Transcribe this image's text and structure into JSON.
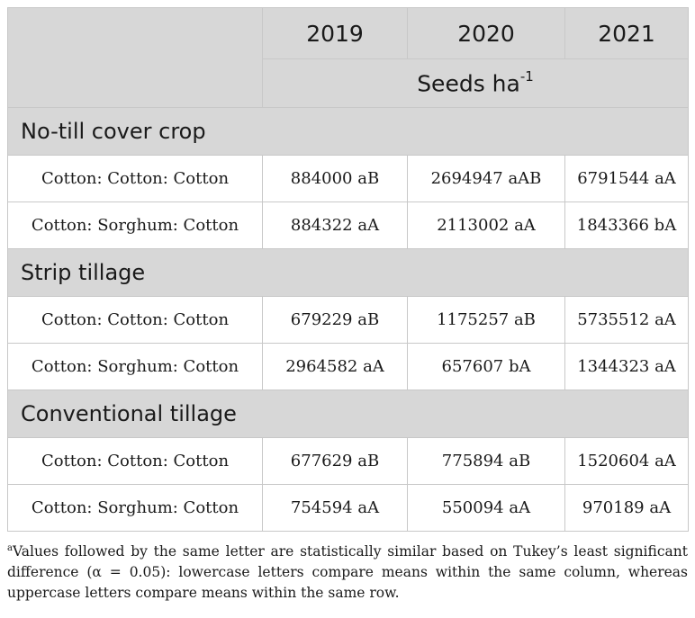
{
  "header": {
    "years": [
      "2019",
      "2020",
      "2021"
    ],
    "unit_text": "Seeds ha",
    "unit_exponent": "-1"
  },
  "groups": [
    {
      "name": "No-till cover crop",
      "rows": [
        {
          "label": "Cotton: Cotton: Cotton",
          "values": [
            "884000 aB",
            "2694947 aAB",
            "6791544 aA"
          ]
        },
        {
          "label": "Cotton: Sorghum: Cotton",
          "values": [
            "884322 aA",
            "2113002 aA",
            "1843366 bA"
          ]
        }
      ]
    },
    {
      "name": "Strip tillage",
      "rows": [
        {
          "label": "Cotton: Cotton: Cotton",
          "values": [
            "679229 aB",
            "1175257 aB",
            "5735512 aA"
          ]
        },
        {
          "label": "Cotton: Sorghum: Cotton",
          "values": [
            "2964582 aA",
            "657607 bA",
            "1344323 aA"
          ]
        }
      ]
    },
    {
      "name": "Conventional tillage",
      "rows": [
        {
          "label": "Cotton: Cotton: Cotton",
          "values": [
            "677629 aB",
            "775894 aB",
            "1520604 aA"
          ]
        },
        {
          "label": "Cotton: Sorghum: Cotton",
          "values": [
            "754594 aA",
            "550094 aA",
            "970189 aA"
          ]
        }
      ]
    }
  ],
  "footnote": {
    "marker": "a",
    "text": "Values followed by the same letter are statistically similar based on Tukey’s least significant difference (α = 0.05): lowercase letters compare means within the same column, whereas uppercase letters compare means within the same row."
  }
}
